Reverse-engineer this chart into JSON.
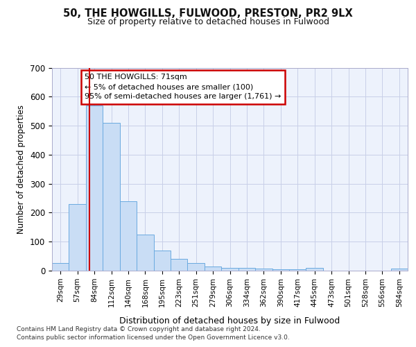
{
  "title1": "50, THE HOWGILLS, FULWOOD, PRESTON, PR2 9LX",
  "title2": "Size of property relative to detached houses in Fulwood",
  "xlabel": "Distribution of detached houses by size in Fulwood",
  "ylabel": "Number of detached properties",
  "footnote1": "Contains HM Land Registry data © Crown copyright and database right 2024.",
  "footnote2": "Contains public sector information licensed under the Open Government Licence v3.0.",
  "categories": [
    "29sqm",
    "57sqm",
    "84sqm",
    "112sqm",
    "140sqm",
    "168sqm",
    "195sqm",
    "223sqm",
    "251sqm",
    "279sqm",
    "306sqm",
    "334sqm",
    "362sqm",
    "390sqm",
    "417sqm",
    "445sqm",
    "473sqm",
    "501sqm",
    "528sqm",
    "556sqm",
    "584sqm"
  ],
  "values": [
    27,
    230,
    570,
    510,
    240,
    125,
    70,
    40,
    27,
    15,
    10,
    10,
    6,
    5,
    5,
    10,
    0,
    0,
    0,
    0,
    7
  ],
  "bar_color": "#c9ddf5",
  "bar_edge_color": "#6aaae0",
  "grid_color": "#c8cfe8",
  "annotation_line1": "50 THE HOWGILLS: 71sqm",
  "annotation_line2": "← 5% of detached houses are smaller (100)",
  "annotation_line3": "95% of semi-detached houses are larger (1,761) →",
  "red_line_x": 1.72,
  "annotation_box_color": "#ffffff",
  "annotation_box_edge_color": "#cc0000",
  "ylim": [
    0,
    700
  ],
  "yticks": [
    0,
    100,
    200,
    300,
    400,
    500,
    600,
    700
  ],
  "bg_color": "#edf2fc"
}
